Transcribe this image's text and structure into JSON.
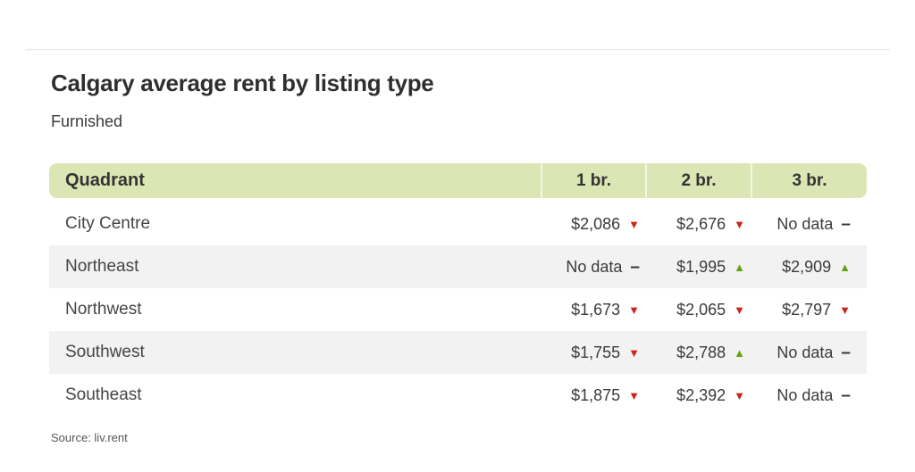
{
  "page": {
    "title": "Calgary average rent by listing type",
    "subtitle": "Furnished",
    "source": "Source: liv.rent"
  },
  "colors": {
    "header_bg": "#dce6b5",
    "alt_row_bg": "#f2f2f2",
    "trend_up": "#64a414",
    "trend_down": "#cc2418",
    "no_data_dash": "#333333"
  },
  "glyphs": {
    "up": "▲",
    "down": "▼",
    "none": "–"
  },
  "chart_data": {
    "type": "table",
    "title": "Calgary average rent by listing type",
    "subtitle": "Furnished",
    "source": "Source: liv.rent",
    "columns": [
      "Quadrant",
      "1 br.",
      "2 br.",
      "3 br."
    ],
    "rows": [
      {
        "quadrant": "City Centre",
        "cells": [
          {
            "display": "$2,086",
            "value": 2086,
            "trend": "down"
          },
          {
            "display": "$2,676",
            "value": 2676,
            "trend": "down"
          },
          {
            "display": "No data",
            "value": null,
            "trend": "none"
          }
        ]
      },
      {
        "quadrant": "Northeast",
        "cells": [
          {
            "display": "No data",
            "value": null,
            "trend": "none"
          },
          {
            "display": "$1,995",
            "value": 1995,
            "trend": "up"
          },
          {
            "display": "$2,909",
            "value": 2909,
            "trend": "up"
          }
        ]
      },
      {
        "quadrant": "Northwest",
        "cells": [
          {
            "display": "$1,673",
            "value": 1673,
            "trend": "down"
          },
          {
            "display": "$2,065",
            "value": 2065,
            "trend": "down"
          },
          {
            "display": "$2,797",
            "value": 2797,
            "trend": "down"
          }
        ]
      },
      {
        "quadrant": "Southwest",
        "cells": [
          {
            "display": "$1,755",
            "value": 1755,
            "trend": "down"
          },
          {
            "display": "$2,788",
            "value": 2788,
            "trend": "up"
          },
          {
            "display": "No data",
            "value": null,
            "trend": "none"
          }
        ]
      },
      {
        "quadrant": "Southeast",
        "cells": [
          {
            "display": "$1,875",
            "value": 1875,
            "trend": "down"
          },
          {
            "display": "$2,392",
            "value": 2392,
            "trend": "down"
          },
          {
            "display": "No data",
            "value": null,
            "trend": "none"
          }
        ]
      }
    ]
  }
}
